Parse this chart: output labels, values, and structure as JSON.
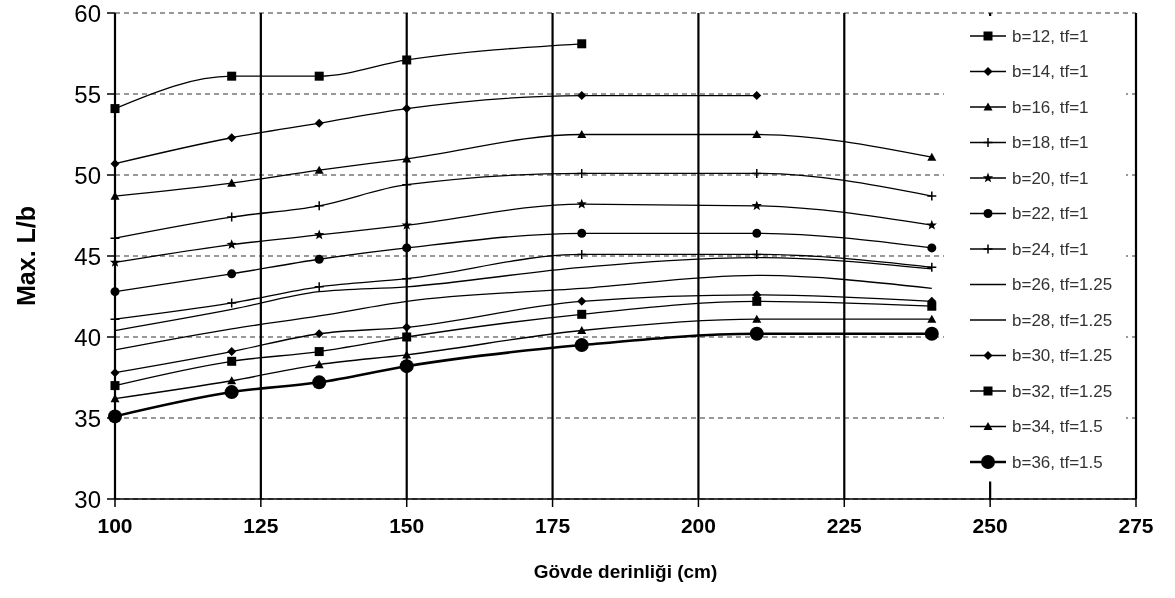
{
  "chart_data": {
    "type": "line",
    "xlabel": "Gövde derinliği (cm)",
    "ylabel": "Max. L/b",
    "xlim": [
      100,
      275
    ],
    "xticks": [
      100,
      125,
      150,
      175,
      200,
      225,
      250,
      275
    ],
    "ylim": [
      30,
      60
    ],
    "yticks": [
      30,
      35,
      40,
      45,
      50,
      55,
      60
    ],
    "grid": true,
    "legend": "right",
    "line_style": "solid",
    "series": [
      {
        "name": "b=12, tf=1",
        "color": "#000000",
        "marker": "square",
        "x": [
          100,
          120,
          135,
          150,
          180
        ],
        "values": [
          54.1,
          56.1,
          56.1,
          57.1,
          58.1
        ]
      },
      {
        "name": "b=14, tf=1",
        "color": "#000000",
        "marker": "diamond",
        "x": [
          100,
          120,
          135,
          150,
          180,
          210
        ],
        "values": [
          50.7,
          52.3,
          53.2,
          54.1,
          54.9,
          54.9
        ]
      },
      {
        "name": "b=16, tf=1",
        "color": "#000000",
        "marker": "triangle",
        "x": [
          100,
          120,
          135,
          150,
          180,
          210,
          240
        ],
        "values": [
          48.7,
          49.5,
          50.3,
          51.0,
          52.5,
          52.5,
          51.1
        ]
      },
      {
        "name": "b=18, tf=1",
        "color": "#000000",
        "marker": "cross",
        "x": [
          100,
          120,
          135,
          150,
          180,
          210,
          240
        ],
        "values": [
          46.1,
          47.4,
          48.1,
          49.4,
          50.1,
          50.1,
          48.7
        ]
      },
      {
        "name": "b=20, tf=1",
        "color": "#000000",
        "marker": "star",
        "x": [
          100,
          120,
          135,
          150,
          180,
          210,
          240
        ],
        "values": [
          44.6,
          45.7,
          46.3,
          46.9,
          48.2,
          48.1,
          46.9
        ]
      },
      {
        "name": "b=22, tf=1",
        "color": "#000000",
        "marker": "circle",
        "x": [
          100,
          120,
          135,
          150,
          180,
          210,
          240
        ],
        "values": [
          42.8,
          43.9,
          44.8,
          45.5,
          46.4,
          46.4,
          45.5
        ]
      },
      {
        "name": "b=24, tf=1",
        "color": "#000000",
        "marker": "cross",
        "x": [
          100,
          120,
          135,
          150,
          180,
          210,
          240
        ],
        "values": [
          41.1,
          42.1,
          43.1,
          43.6,
          45.1,
          45.1,
          44.3
        ]
      },
      {
        "name": "b=26, tf=1.25",
        "color": "#000000",
        "marker": "none",
        "x": [
          100,
          120,
          135,
          150,
          180,
          210,
          240
        ],
        "values": [
          40.4,
          41.7,
          42.8,
          43.1,
          44.3,
          44.9,
          44.2
        ]
      },
      {
        "name": "b=28, tf=1.25",
        "color": "#000000",
        "marker": "none",
        "x": [
          100,
          120,
          135,
          150,
          180,
          210,
          240
        ],
        "values": [
          39.2,
          40.5,
          41.3,
          42.2,
          43.0,
          43.8,
          43.0
        ]
      },
      {
        "name": "b=30, tf=1.25",
        "color": "#000000",
        "marker": "diamond",
        "x": [
          100,
          120,
          135,
          150,
          180,
          210,
          240
        ],
        "values": [
          37.8,
          39.1,
          40.2,
          40.6,
          42.2,
          42.6,
          42.2
        ]
      },
      {
        "name": "b=32, tf=1.25",
        "color": "#000000",
        "marker": "square",
        "x": [
          100,
          120,
          135,
          150,
          180,
          210,
          240
        ],
        "values": [
          37.0,
          38.5,
          39.1,
          40.0,
          41.4,
          42.2,
          41.9
        ]
      },
      {
        "name": "b=34, tf=1.5",
        "color": "#000000",
        "marker": "triangle",
        "x": [
          100,
          120,
          135,
          150,
          180,
          210,
          240
        ],
        "values": [
          36.2,
          37.3,
          38.3,
          38.9,
          40.4,
          41.1,
          41.1
        ]
      },
      {
        "name": "b=36, tf=1.5",
        "color": "#000000",
        "marker": "circle",
        "x": [
          100,
          120,
          135,
          150,
          180,
          210,
          240
        ],
        "values": [
          35.1,
          36.6,
          37.2,
          38.2,
          39.5,
          40.2,
          40.2
        ]
      }
    ]
  }
}
